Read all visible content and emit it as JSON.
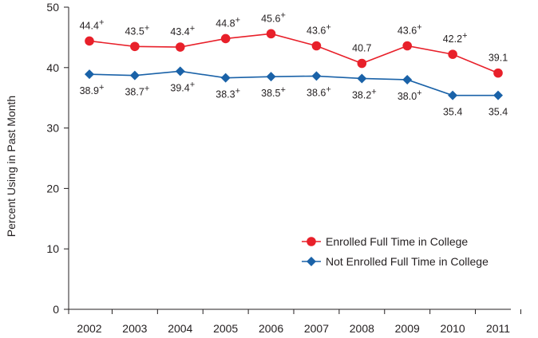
{
  "chart_data": {
    "type": "line",
    "ylabel": "Percent Using in Past Month",
    "xlabel": "",
    "categories": [
      "2002",
      "2003",
      "2004",
      "2005",
      "2006",
      "2007",
      "2008",
      "2009",
      "2010",
      "2011"
    ],
    "ylim": [
      0,
      50
    ],
    "yticks": [
      "0",
      "10",
      "20",
      "30",
      "40",
      "50"
    ],
    "grid": false,
    "legend_position": "bottom-right",
    "series": [
      {
        "name": "Enrolled Full Time in College",
        "color": "#e8202a",
        "marker": "circle",
        "values": [
          44.4,
          43.5,
          43.4,
          44.8,
          45.6,
          43.6,
          40.7,
          43.6,
          42.2,
          39.1
        ],
        "labels": [
          "44.4",
          "43.5",
          "43.4",
          "44.8",
          "45.6",
          "43.6",
          "40.7",
          "43.6",
          "42.2",
          "39.1"
        ],
        "plus": [
          true,
          true,
          true,
          true,
          true,
          true,
          false,
          true,
          true,
          false
        ],
        "label_side": "above"
      },
      {
        "name": "Not Enrolled Full Time in College",
        "color": "#1a62a8",
        "marker": "diamond",
        "values": [
          38.9,
          38.7,
          39.4,
          38.3,
          38.5,
          38.6,
          38.2,
          38.0,
          35.4,
          35.4
        ],
        "labels": [
          "38.9",
          "38.7",
          "39.4",
          "38.3",
          "38.5",
          "38.6",
          "38.2",
          "38.0",
          "35.4",
          "35.4"
        ],
        "plus": [
          true,
          true,
          true,
          true,
          true,
          true,
          true,
          true,
          false,
          false
        ],
        "label_side": "below"
      }
    ]
  }
}
